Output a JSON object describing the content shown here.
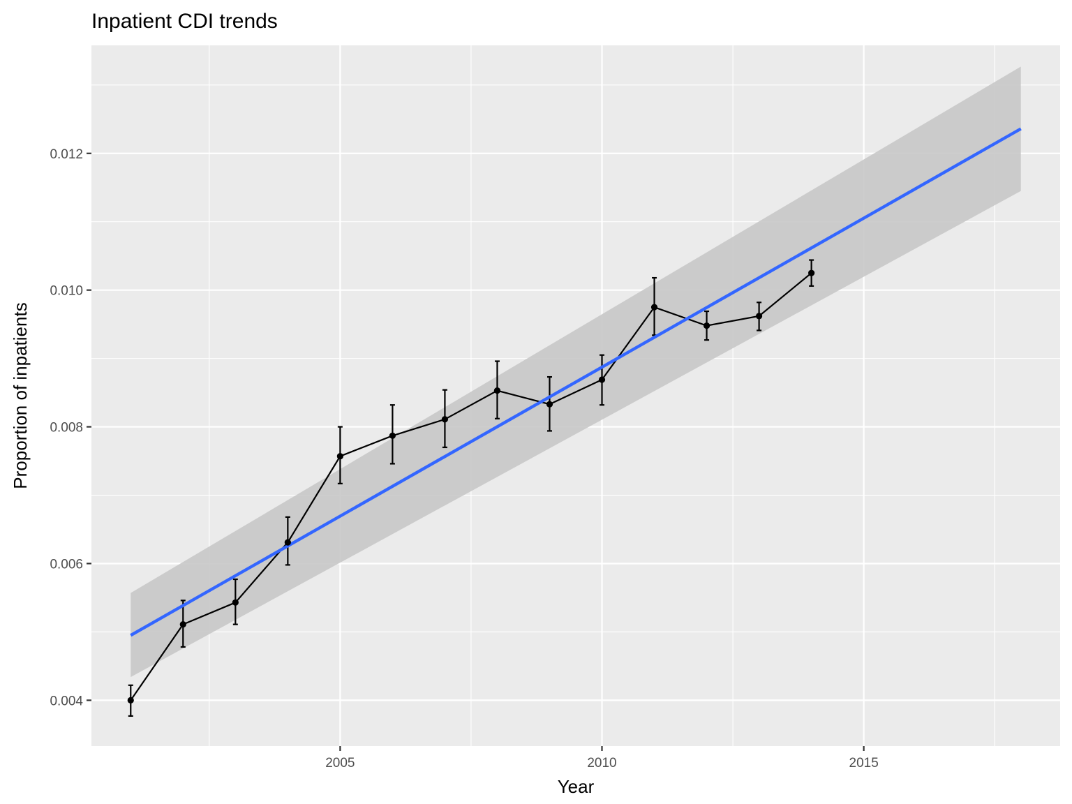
{
  "chart_data": {
    "type": "line",
    "title": "Inpatient CDI trends",
    "xlabel": "Year",
    "ylabel": "Proportion of inpatients",
    "xlim": [
      2000.25,
      2018.75
    ],
    "ylim": [
      0.00333,
      0.01358
    ],
    "x_ticks": [
      2005,
      2010,
      2015
    ],
    "x_tick_labels": [
      "2005",
      "2010",
      "2015"
    ],
    "y_ticks": [
      0.004,
      0.006,
      0.008,
      0.01,
      0.012
    ],
    "y_tick_labels": [
      "0.004",
      "0.006",
      "0.008",
      "0.010",
      "0.012"
    ],
    "grid": true,
    "series": [
      {
        "kind": "observed",
        "x": [
          2001,
          2002,
          2003,
          2004,
          2005,
          2006,
          2007,
          2008,
          2009,
          2010,
          2011,
          2012,
          2013,
          2014
        ],
        "y": [
          0.004,
          0.00511,
          0.00543,
          0.00631,
          0.00757,
          0.00787,
          0.00811,
          0.00853,
          0.00833,
          0.00869,
          0.00975,
          0.00948,
          0.00962,
          0.01025
        ],
        "y_lower": [
          0.00377,
          0.00478,
          0.00511,
          0.00598,
          0.00717,
          0.00746,
          0.0077,
          0.00812,
          0.00794,
          0.00832,
          0.00934,
          0.00927,
          0.00941,
          0.01006
        ],
        "y_upper": [
          0.00422,
          0.00546,
          0.00577,
          0.00668,
          0.008,
          0.00832,
          0.00854,
          0.00896,
          0.00873,
          0.00905,
          0.01018,
          0.00969,
          0.00982,
          0.01044
        ],
        "color": "#000000"
      },
      {
        "kind": "linear-fit",
        "x": [
          2001,
          2018
        ],
        "y": [
          0.00495,
          0.01236
        ],
        "color": "#3366ff",
        "band_lower": [
          0.00434,
          0.01145
        ],
        "band_upper": [
          0.00557,
          0.01327
        ],
        "band_color": "#c8c8c8"
      }
    ],
    "colors": {
      "panel": "#ebebeb",
      "grid": "#ffffff",
      "tick": "#333333"
    }
  }
}
